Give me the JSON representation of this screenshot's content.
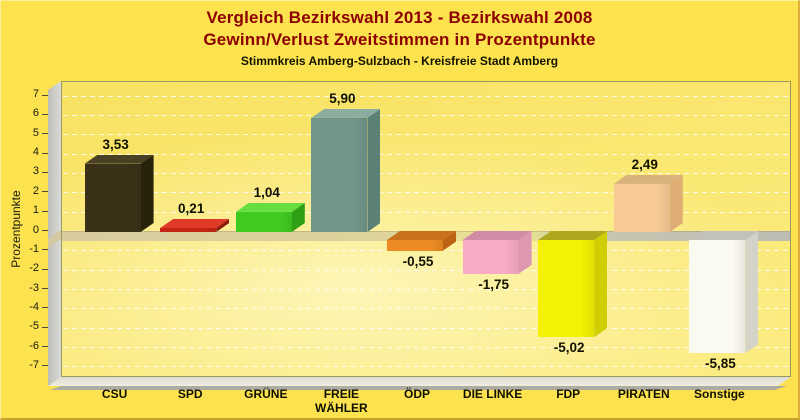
{
  "title": {
    "line1": "Vergleich Bezirkswahl 2013 - Bezirkswahl 2008",
    "line2": "Gewinn/Verlust Zweitstimmen in Prozentpunkte",
    "subtitle": "Stimmkreis Amberg-Sulzbach - Kreisfreie Stadt Amberg"
  },
  "chart_data": {
    "type": "bar",
    "style": "3d-column",
    "title": "Vergleich Bezirkswahl 2013 - Bezirkswahl 2008 Gewinn/Verlust Zweitstimmen in Prozentpunkte",
    "subtitle": "Stimmkreis Amberg-Sulzbach - Kreisfreie Stadt Amberg",
    "categories": [
      "CSU",
      "SPD",
      "GRÜNE",
      "FREIE WÄHLER",
      "ÖDP",
      "DIE LINKE",
      "FDP",
      "PIRATEN",
      "Sonstige"
    ],
    "values": [
      3.53,
      0.21,
      1.04,
      5.9,
      -0.55,
      -1.75,
      -5.02,
      2.49,
      -5.85
    ],
    "value_labels": [
      "3,53",
      "0,21",
      "1,04",
      "5,90",
      "-0,55",
      "-1,75",
      "-5,02",
      "2,49",
      "-5,85"
    ],
    "xlabel": "",
    "ylabel": "Prozentpunkte",
    "ylim": [
      -7,
      7
    ],
    "ytick_step": 1,
    "grid": true,
    "legend": false,
    "bar_colors": [
      {
        "party": "CSU",
        "front": "#3A3118",
        "top": "#4A4124",
        "side": "#28220C"
      },
      {
        "party": "SPD",
        "front": "#C32413",
        "top": "#DF3A28",
        "side": "#8F1A0C"
      },
      {
        "party": "GRÜNE",
        "front": "#3FCA20",
        "top": "#66DE40",
        "side": "#2FA015"
      },
      {
        "party": "FREIE WÄHLER",
        "front": "#70968B",
        "top": "#8BAC9F",
        "side": "#5B8075"
      },
      {
        "party": "ÖDP",
        "front": "#EC8B24",
        "top": "#C9701A",
        "side": "#BC6212"
      },
      {
        "party": "DIE LINKE",
        "front": "#F8ABC4",
        "top": "#D08CA6",
        "side": "#DD97B1"
      },
      {
        "party": "FDP",
        "front": "#F3F104",
        "top": "#AFA81F",
        "side": "#D0CE00"
      },
      {
        "party": "PIRATEN",
        "front": "#F7CA95",
        "top": "#D9B27E",
        "side": "#DFAE74"
      },
      {
        "party": "Sonstige",
        "front": "#FBFAF0",
        "top": "#C2C2BA",
        "side": "#D3D3C9"
      }
    ]
  },
  "colors": {
    "page_bg": "#FCE24E",
    "title_color": "#8B0000",
    "subtitle_color": "#141400",
    "plot_border": "#9A9A60",
    "zero_band_left": "#D8CC9E",
    "zero_band_right": "#BCBCB4",
    "wall_gray": "#C9C9C5",
    "floor_cream": "#EDEBDC"
  }
}
